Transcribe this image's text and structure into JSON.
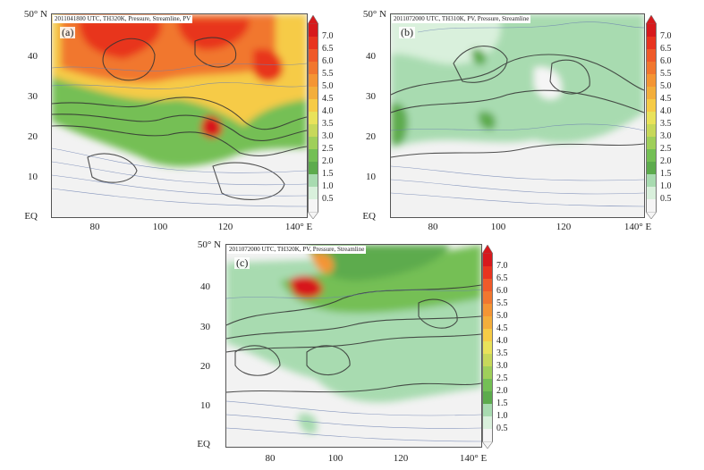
{
  "colorbar": {
    "ticks": [
      "7.0",
      "6.5",
      "6.0",
      "5.5",
      "5.0",
      "4.5",
      "4.0",
      "3.5",
      "3.0",
      "2.5",
      "2.0",
      "1.5",
      "1.0",
      "0.5"
    ],
    "colors": [
      "#d7191c",
      "#e8341f",
      "#ef5a2a",
      "#f1772f",
      "#f49534",
      "#f3ae3b",
      "#f6cb46",
      "#e9e25a",
      "#c7d85a",
      "#9fcf5a",
      "#74bf55",
      "#5dab4d",
      "#a8dbb0",
      "#d9f0dc",
      "#f5f5f5"
    ]
  },
  "axis": {
    "lat_labels": [
      "50° N",
      "40",
      "30",
      "20",
      "10",
      "EQ"
    ],
    "lon_labels": [
      "80",
      "100",
      "120",
      "140° E"
    ]
  },
  "panels": [
    {
      "id": "a",
      "label": "(a)",
      "header": "2011041800 UTC, TH320K, Pressure, Streamline, PV"
    },
    {
      "id": "b",
      "label": "(b)",
      "header": "2011072000 UTC, TH310K, PV, Pressure, Streamline"
    },
    {
      "id": "c",
      "label": "(c)",
      "header": "2011072000 UTC, TH320K, PV, Pressure, Streamline"
    }
  ]
}
